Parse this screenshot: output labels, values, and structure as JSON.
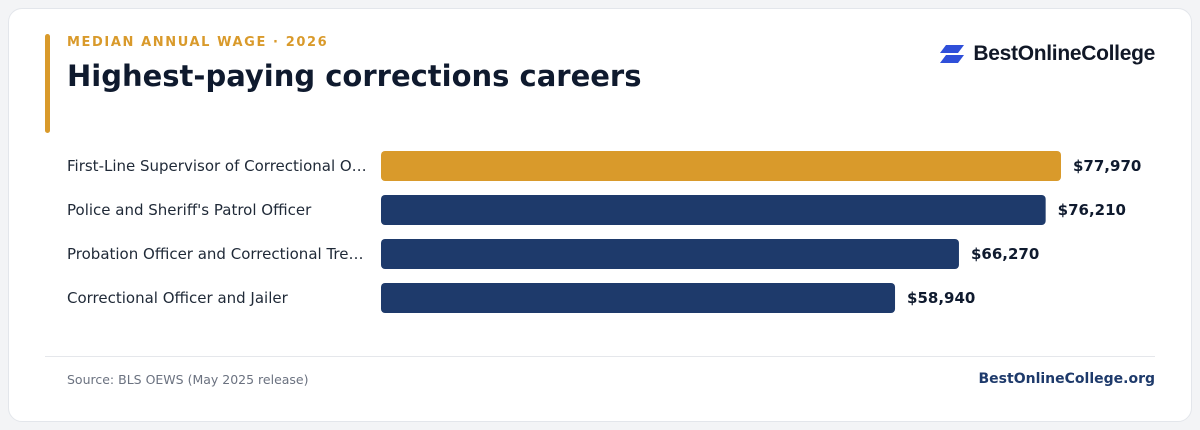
{
  "header": {
    "eyebrow": "MEDIAN ANNUAL WAGE · 2026",
    "title": "Highest-paying corrections careers"
  },
  "brand": {
    "logo_text": "BestOnlineCollege",
    "logo_icon": "stacked-parallelogram-logo-icon",
    "logo_color": "#2f4fd9"
  },
  "footer": {
    "source": "Source: BLS OEWS (May 2025 release)",
    "site": "BestOnlineCollege.org"
  },
  "colors": {
    "highlight": "#d99a2b",
    "bar": "#1e3a6b"
  },
  "chart_data": {
    "type": "bar",
    "orientation": "horizontal",
    "title": "Highest-paying corrections careers",
    "categories": [
      "First-Line Supervisor of Correctional O…",
      "Police and Sheriff's Patrol Officer",
      "Probation Officer and Correctional Tre…",
      "Correctional Officer and Jailer"
    ],
    "values": [
      77970,
      76210,
      66270,
      58940
    ],
    "value_labels": [
      "$77,970",
      "$76,210",
      "$66,270",
      "$58,940"
    ],
    "highlight_index": 0,
    "xlim": [
      0,
      77970
    ],
    "grid": false,
    "legend": "none"
  }
}
